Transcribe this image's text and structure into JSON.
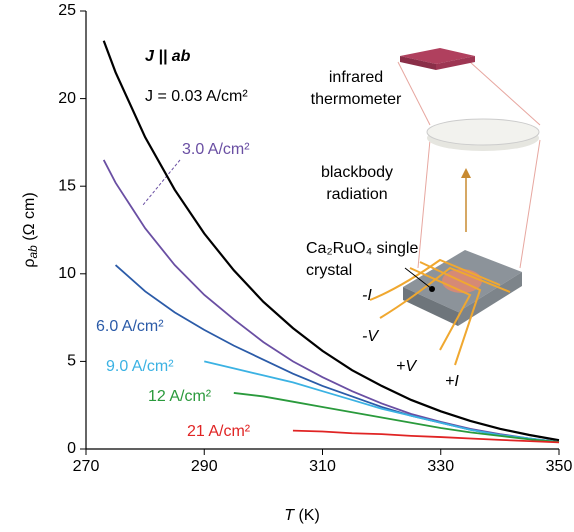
{
  "chart_data": {
    "type": "line",
    "x_label": {
      "symbol": "T",
      "unit": "(K)"
    },
    "y_label": {
      "symbol": "ρ",
      "subscript": "ab",
      "unit": "(Ω cm)"
    },
    "x": [
      273,
      275,
      280,
      285,
      290,
      295,
      300,
      305,
      310,
      315,
      320,
      325,
      330,
      335,
      340,
      345,
      350
    ],
    "series": [
      {
        "name": "J = 0.03 A/cm²",
        "color": "#000000",
        "values": [
          23.3,
          21.5,
          17.8,
          14.8,
          12.3,
          10.2,
          8.4,
          6.9,
          5.6,
          4.5,
          3.6,
          2.8,
          2.15,
          1.6,
          1.15,
          0.8,
          0.5
        ]
      },
      {
        "name": "3.0 A/cm²",
        "color": "#6a4fa3",
        "values": [
          16.5,
          15.2,
          12.6,
          10.5,
          8.8,
          7.4,
          6.1,
          5.0,
          4.1,
          3.3,
          2.6,
          2.0,
          1.55,
          1.15,
          0.85,
          0.6,
          0.4
        ]
      },
      {
        "name": "6.0 A/cm²",
        "color": "#2b5ba8",
        "values": [
          null,
          10.5,
          9.0,
          7.8,
          6.8,
          5.9,
          5.1,
          4.3,
          3.6,
          3.0,
          2.4,
          1.9,
          1.5,
          1.1,
          0.8,
          0.6,
          0.4
        ]
      },
      {
        "name": "9.0 A/cm²",
        "color": "#3bb2e3",
        "values": [
          null,
          null,
          null,
          null,
          5.0,
          4.6,
          4.2,
          3.8,
          3.3,
          2.8,
          2.3,
          1.9,
          1.5,
          1.1,
          0.8,
          0.6,
          0.4
        ]
      },
      {
        "name": "12 A/cm²",
        "color": "#2a9a3c",
        "values": [
          null,
          null,
          null,
          null,
          null,
          3.2,
          3.0,
          2.7,
          2.4,
          2.1,
          1.8,
          1.5,
          1.2,
          0.95,
          0.75,
          0.55,
          0.4
        ]
      },
      {
        "name": "21 A/cm²",
        "color": "#e02424",
        "values": [
          null,
          null,
          null,
          null,
          null,
          null,
          null,
          1.05,
          1.0,
          0.9,
          0.85,
          0.75,
          0.68,
          0.6,
          0.52,
          0.45,
          0.38
        ]
      }
    ],
    "annotations": [
      "J || ab",
      "infrared thermometer",
      "blackbody radiation",
      "Ca₂RuO₄ single crystal",
      "-I",
      "-V",
      "+V",
      "+I"
    ],
    "xlim": [
      270,
      350
    ],
    "ylim": [
      0,
      25
    ],
    "xticks": [
      270,
      290,
      310,
      330,
      350
    ],
    "yticks": [
      0,
      5,
      10,
      15,
      20,
      25
    ]
  }
}
